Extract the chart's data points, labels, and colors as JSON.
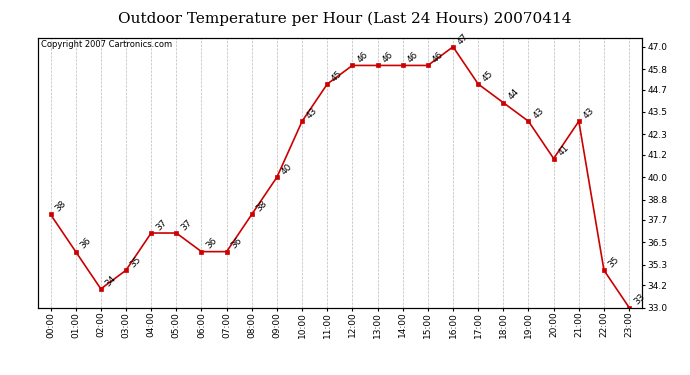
{
  "title": "Outdoor Temperature per Hour (Last 24 Hours) 20070414",
  "copyright_text": "Copyright 2007 Cartronics.com",
  "hours": [
    "00:00",
    "01:00",
    "02:00",
    "03:00",
    "04:00",
    "05:00",
    "06:00",
    "07:00",
    "08:00",
    "09:00",
    "10:00",
    "11:00",
    "12:00",
    "13:00",
    "14:00",
    "15:00",
    "16:00",
    "17:00",
    "18:00",
    "19:00",
    "20:00",
    "21:00",
    "22:00",
    "23:00"
  ],
  "temperatures": [
    38,
    36,
    34,
    35,
    37,
    37,
    36,
    36,
    38,
    40,
    43,
    45,
    46,
    46,
    46,
    46,
    47,
    45,
    44,
    43,
    41,
    43,
    35,
    33
  ],
  "ylim": [
    33.0,
    47.5
  ],
  "yticks_right": [
    33.0,
    34.2,
    35.3,
    36.5,
    37.7,
    38.8,
    40.0,
    41.2,
    42.3,
    43.5,
    44.7,
    45.8,
    47.0
  ],
  "line_color": "#cc0000",
  "marker_color": "#cc0000",
  "bg_color": "#ffffff",
  "grid_color": "#bbbbbb",
  "title_fontsize": 11,
  "tick_fontsize": 6.5,
  "annotation_fontsize": 6.5,
  "copyright_fontsize": 6
}
